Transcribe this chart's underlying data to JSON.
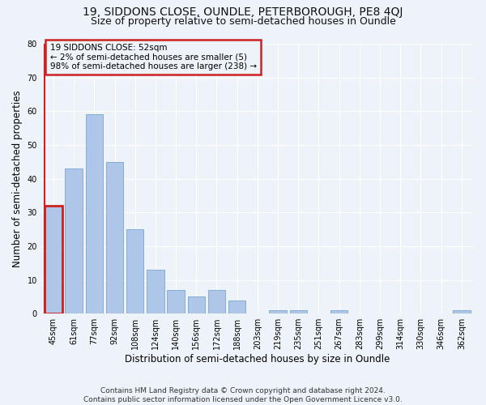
{
  "title": "19, SIDDONS CLOSE, OUNDLE, PETERBOROUGH, PE8 4QJ",
  "subtitle": "Size of property relative to semi-detached houses in Oundle",
  "xlabel": "Distribution of semi-detached houses by size in Oundle",
  "ylabel": "Number of semi-detached properties",
  "bar_labels": [
    "45sqm",
    "61sqm",
    "77sqm",
    "92sqm",
    "108sqm",
    "124sqm",
    "140sqm",
    "156sqm",
    "172sqm",
    "188sqm",
    "203sqm",
    "219sqm",
    "235sqm",
    "251sqm",
    "267sqm",
    "283sqm",
    "299sqm",
    "314sqm",
    "330sqm",
    "346sqm",
    "362sqm"
  ],
  "bar_values": [
    32,
    43,
    59,
    45,
    25,
    13,
    7,
    5,
    7,
    4,
    0,
    1,
    1,
    0,
    1,
    0,
    0,
    0,
    0,
    0,
    1
  ],
  "bar_color": "#aec6e8",
  "bar_edge_color": "#6699cc",
  "highlight_index": 0,
  "highlight_color": "#cc2222",
  "annotation_text": "19 SIDDONS CLOSE: 52sqm\n← 2% of semi-detached houses are smaller (5)\n98% of semi-detached houses are larger (238) →",
  "ylim": [
    0,
    80
  ],
  "yticks": [
    0,
    10,
    20,
    30,
    40,
    50,
    60,
    70,
    80
  ],
  "footer": "Contains HM Land Registry data © Crown copyright and database right 2024.\nContains public sector information licensed under the Open Government Licence v3.0.",
  "bg_color": "#eef2f9",
  "grid_color": "#ffffff",
  "title_fontsize": 10,
  "subtitle_fontsize": 9,
  "axis_label_fontsize": 8.5,
  "tick_fontsize": 7,
  "footer_fontsize": 6.5,
  "annot_fontsize": 7.5
}
